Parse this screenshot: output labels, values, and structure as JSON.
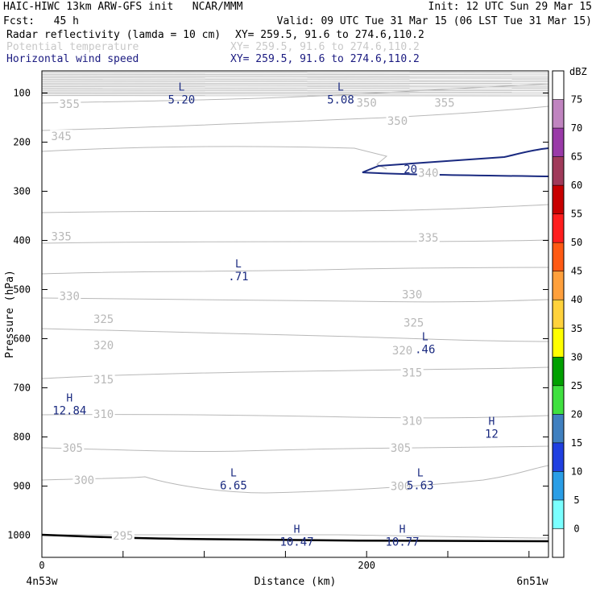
{
  "header": {
    "title_left": "HAIC-HIWC 13km ARW-GFS init   NCAR/MMM",
    "title_right": "Init: 12 UTC Sun 29 Mar 15",
    "fcst": "Fcst:   45 h",
    "valid": "Valid: 09 UTC Tue 31 Mar 15 (06 LST Tue 31 Mar 15)",
    "field1_label": "Radar reflectivity (lamda = 10 cm)",
    "field1_xy": "XY= 259.5, 91.6 to 274.6,110.2",
    "field2_label": "Potential temperature",
    "field2_xy": "XY= 259.5, 91.6 to 274.6,110.2",
    "field3_label": "Horizontal wind speed",
    "field3_xy": "XY= 259.5, 91.6 to 274.6,110.2"
  },
  "colors": {
    "theta": "#b8b8b8",
    "wind": "#1a2a80",
    "ground": "#000000",
    "header_dim": "#c8c8c8",
    "header_blue": "#1a1a80"
  },
  "chart_data": {
    "type": "cross-section",
    "xlabel": "Distance (km)",
    "ylabel": "Pressure (hPa)",
    "xlim": [
      0,
      312
    ],
    "ylim": [
      1045,
      55
    ],
    "x_ticks": [
      {
        "v": 0,
        "label": "0"
      },
      {
        "v": 200,
        "label": "200"
      }
    ],
    "x_minor": [
      50,
      100,
      150,
      250,
      300
    ],
    "y_ticks": [
      100,
      200,
      300,
      400,
      500,
      600,
      700,
      800,
      900,
      1000
    ],
    "endpoint_left": "4n53w",
    "endpoint_right": "6n51w",
    "theta_contours": [
      {
        "value": "355",
        "label_at": [
          [
            17,
            122
          ],
          [
            248,
            120
          ]
        ]
      },
      {
        "value": "350",
        "label_at": [
          [
            219,
            157
          ],
          [
            200,
            120
          ]
        ]
      },
      {
        "value": "345",
        "label_at": [
          [
            12,
            188
          ]
        ]
      },
      {
        "value": "340",
        "label_at": [
          [
            238,
            262
          ]
        ]
      },
      {
        "value": "335",
        "label_at": [
          [
            12,
            392
          ],
          [
            238,
            394
          ]
        ]
      },
      {
        "value": "330",
        "label_at": [
          [
            17,
            513
          ],
          [
            228,
            510
          ]
        ]
      },
      {
        "value": "325",
        "label_at": [
          [
            38,
            560
          ],
          [
            229,
            567
          ]
        ]
      },
      {
        "value": "320",
        "label_at": [
          [
            38,
            613
          ],
          [
            222,
            624
          ]
        ]
      },
      {
        "value": "315",
        "label_at": [
          [
            38,
            683
          ],
          [
            228,
            669
          ]
        ]
      },
      {
        "value": "310",
        "label_at": [
          [
            38,
            753
          ],
          [
            228,
            767
          ]
        ]
      },
      {
        "value": "305",
        "label_at": [
          [
            19,
            822
          ],
          [
            221,
            822
          ]
        ]
      },
      {
        "value": "300",
        "label_at": [
          [
            26,
            888
          ],
          [
            221,
            900
          ]
        ]
      },
      {
        "value": "295",
        "label_at": [
          [
            50,
            1001
          ]
        ]
      }
    ],
    "wind_extrema": [
      {
        "type": "L",
        "value": "5.20",
        "x": 86,
        "p": 100
      },
      {
        "type": "L",
        "value": "5.08",
        "x": 184,
        "p": 100
      },
      {
        "type": "L",
        "value": ".71",
        "x": 121,
        "p": 460
      },
      {
        "type": "L",
        "value": ".46",
        "x": 236,
        "p": 608
      },
      {
        "type": "H",
        "value": "12.84",
        "x": 17,
        "p": 733
      },
      {
        "type": "H",
        "value": "12",
        "x": 277,
        "p": 780
      },
      {
        "type": "L",
        "value": "6.65",
        "x": 118,
        "p": 885
      },
      {
        "type": "L",
        "value": "5.63",
        "x": 233,
        "p": 885
      },
      {
        "type": "H",
        "value": "10.47",
        "x": 157,
        "p": 1000
      },
      {
        "type": "H",
        "value": "10.77",
        "x": 222,
        "p": 1000
      }
    ],
    "wind_contours": [
      {
        "value": "20",
        "label_at": [
          227,
          255
        ]
      }
    ],
    "colorbar": {
      "title": "dBZ",
      "labels": [
        "75",
        "70",
        "65",
        "60",
        "55",
        "50",
        "45",
        "40",
        "35",
        "30",
        "25",
        "20",
        "15",
        "10",
        "5",
        "0"
      ],
      "colors": [
        "#ffffff",
        "#c084c0",
        "#9a3aa8",
        "#a03a5a",
        "#c80000",
        "#ff1e1e",
        "#ff5a14",
        "#ffa03c",
        "#ffd23c",
        "#ffff00",
        "#00a000",
        "#40e040",
        "#4080c0",
        "#2040e0",
        "#2a9ee6",
        "#7affff",
        "#ffffff"
      ]
    }
  }
}
